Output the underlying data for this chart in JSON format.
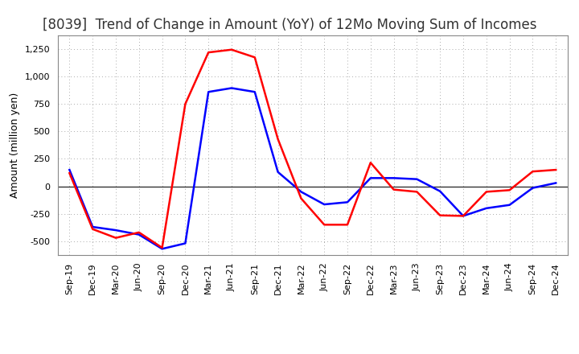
{
  "title": "[8039]  Trend of Change in Amount (YoY) of 12Mo Moving Sum of Incomes",
  "ylabel": "Amount (million yen)",
  "ylim": [
    -625,
    1375
  ],
  "yticks": [
    -500,
    -250,
    0,
    250,
    500,
    750,
    1000,
    1250
  ],
  "x_labels": [
    "Sep-19",
    "Dec-19",
    "Mar-20",
    "Jun-20",
    "Sep-20",
    "Dec-20",
    "Mar-21",
    "Jun-21",
    "Sep-21",
    "Dec-21",
    "Mar-22",
    "Jun-22",
    "Sep-22",
    "Dec-22",
    "Mar-23",
    "Jun-23",
    "Sep-23",
    "Dec-23",
    "Mar-24",
    "Jun-24",
    "Sep-24",
    "Dec-24"
  ],
  "ordinary_income": [
    150,
    -370,
    -400,
    -440,
    -570,
    -520,
    860,
    895,
    860,
    130,
    -50,
    -165,
    -145,
    75,
    75,
    65,
    -45,
    -270,
    -200,
    -170,
    -15,
    30
  ],
  "net_income": [
    120,
    -390,
    -470,
    -420,
    -560,
    750,
    1220,
    1245,
    1175,
    430,
    -110,
    -350,
    -350,
    215,
    -30,
    -50,
    -265,
    -270,
    -50,
    -35,
    135,
    150
  ],
  "ordinary_color": "#0000ff",
  "net_color": "#ff0000",
  "background_color": "#ffffff",
  "grid_color": "#aaaaaa",
  "line_width": 1.8,
  "title_fontsize": 12,
  "label_fontsize": 9,
  "tick_fontsize": 8,
  "legend_fontsize": 10
}
